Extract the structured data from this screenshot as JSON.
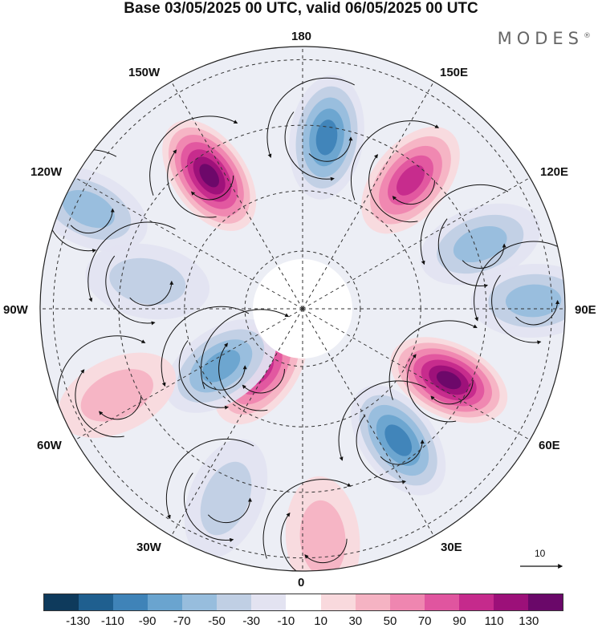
{
  "header": {
    "title": "Base 03/05/2025 00 UTC, valid 06/05/2025 00 UTC",
    "brand": "MODES",
    "brand_mark": "®"
  },
  "longitude_labels": [
    "180",
    "150E",
    "120E",
    "90E",
    "60E",
    "30E",
    "0",
    "30W",
    "60W",
    "90W",
    "120W",
    "150W"
  ],
  "vector_scale": {
    "label": "10"
  },
  "colorbar": {
    "colors": [
      "#0e3a5c",
      "#1f5f8f",
      "#3f83b8",
      "#6aa4cf",
      "#97bddd",
      "#c0cfe4",
      "#e3e3f1",
      "#ffffff",
      "#f9d9dd",
      "#f5b3c3",
      "#ef86b0",
      "#e0559f",
      "#c52a8c",
      "#9c1079",
      "#6a0869"
    ],
    "tick_labels": [
      "-130",
      "-110",
      "-90",
      "-70",
      "-50",
      "-30",
      "-10",
      "10",
      "30",
      "50",
      "70",
      "90",
      "110",
      "130"
    ]
  },
  "anomaly_centers": [
    {
      "lon": -145,
      "dist": 0.62,
      "value": 130
    },
    {
      "lon": 172,
      "dist": 0.66,
      "value": -90
    },
    {
      "lon": 140,
      "dist": 0.64,
      "value": 85
    },
    {
      "lon": 110,
      "dist": 0.72,
      "value": -45
    },
    {
      "lon": 92,
      "dist": 0.88,
      "value": -55
    },
    {
      "lon": 64,
      "dist": 0.62,
      "value": 125
    },
    {
      "lon": 36,
      "dist": 0.62,
      "value": -80
    },
    {
      "lon": 5,
      "dist": 0.88,
      "value": 30
    },
    {
      "lon": -22,
      "dist": 0.78,
      "value": -30
    },
    {
      "lon": -35,
      "dist": 0.28,
      "value": 85
    },
    {
      "lon": -55,
      "dist": 0.38,
      "value": -75
    },
    {
      "lon": -65,
      "dist": 0.78,
      "value": 30
    },
    {
      "lon": -115,
      "dist": 0.9,
      "value": -55
    },
    {
      "lon": -100,
      "dist": 0.6,
      "value": -25
    }
  ]
}
